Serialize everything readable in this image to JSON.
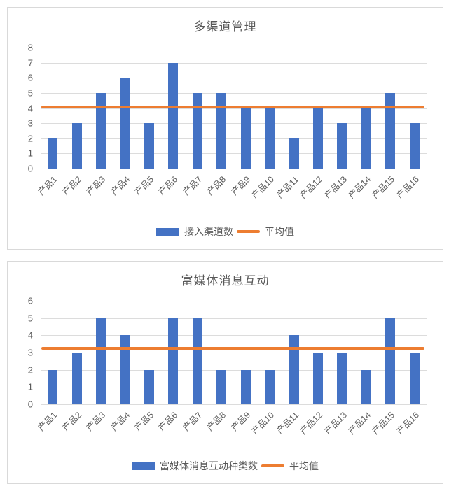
{
  "colors": {
    "bar": "#4472C4",
    "line": "#ED7D31",
    "grid": "#DCDCDC",
    "text": "#595959",
    "card_border": "#D9D9D9",
    "background": "#FFFFFF"
  },
  "chart_data": [
    {
      "type": "bar",
      "title": "多渠道管理",
      "categories": [
        "产品1",
        "产品2",
        "产品3",
        "产品4",
        "产品5",
        "产品6",
        "产品7",
        "产品8",
        "产品9",
        "产品10",
        "产品11",
        "产品12",
        "产品13",
        "产品14",
        "产品15",
        "产品16"
      ],
      "series": [
        {
          "name": "接入渠道数",
          "kind": "bar",
          "values": [
            2,
            3,
            5,
            6,
            3,
            7,
            5,
            5,
            4,
            4,
            2,
            4,
            3,
            4,
            5,
            3
          ]
        },
        {
          "name": "平均值",
          "kind": "line",
          "value": 4.0625
        }
      ],
      "xlabel": "",
      "ylabel": "",
      "ylim": [
        0,
        8
      ],
      "ytick_step": 1,
      "grid": true,
      "legend_position": "bottom"
    },
    {
      "type": "bar",
      "title": "富媒体消息互动",
      "categories": [
        "产品1",
        "产品2",
        "产品3",
        "产品4",
        "产品5",
        "产品6",
        "产品7",
        "产品8",
        "产品9",
        "产品10",
        "产品11",
        "产品12",
        "产品13",
        "产品14",
        "产品15",
        "产品16"
      ],
      "series": [
        {
          "name": "富媒体消息互动种类数",
          "kind": "bar",
          "values": [
            2,
            3,
            5,
            4,
            2,
            5,
            5,
            2,
            2,
            2,
            4,
            3,
            3,
            2,
            5,
            3
          ]
        },
        {
          "name": "平均值",
          "kind": "line",
          "value": 3.25
        }
      ],
      "xlabel": "",
      "ylabel": "",
      "ylim": [
        0,
        6
      ],
      "ytick_step": 1,
      "grid": true,
      "legend_position": "bottom"
    }
  ]
}
